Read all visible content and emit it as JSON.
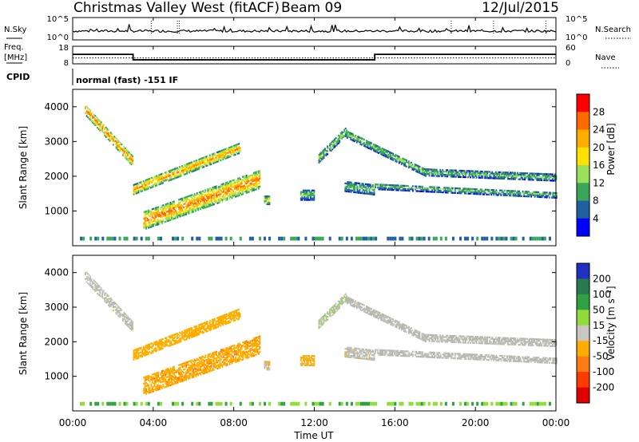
{
  "header": {
    "station": "Christmas Valley West (fitACF)",
    "beam": "Beam 09",
    "date": "12/Jul/2015"
  },
  "noise_panel": {
    "left_label": "N.Sky",
    "right_label": "N.Search",
    "left_ticks": [
      "10^5",
      "10^0"
    ],
    "right_ticks": [
      "10^5",
      "10^0"
    ]
  },
  "freq_panel": {
    "left_label_1": "Freq.",
    "left_label_2": "[MHz]",
    "right_label": "Nave",
    "left_ticks": [
      "18",
      "8"
    ],
    "right_ticks": [
      "60",
      "0"
    ]
  },
  "cpid": {
    "label": "CPID",
    "value": "normal (fast) -151 IF"
  },
  "power_panel": {
    "ylabel": "Slant Range [km]",
    "yticks": [
      "4000",
      "3000",
      "2000",
      "1000"
    ],
    "colorbar_label": "Power [dB]",
    "colorbar_ticks": [
      "28",
      "24",
      "20",
      "16",
      "12",
      "8",
      "4"
    ]
  },
  "velocity_panel": {
    "ylabel": "Slant Range [km]",
    "yticks": [
      "4000",
      "3000",
      "2000",
      "1000"
    ],
    "colorbar_label": "Velocity [m s⁻¹]",
    "colorbar_ticks": [
      "200",
      "100",
      "50",
      "15",
      "-15",
      "-50",
      "-100",
      "-200"
    ]
  },
  "xaxis": {
    "label": "Time UT",
    "ticks": [
      "00:00",
      "04:00",
      "08:00",
      "12:00",
      "16:00",
      "20:00",
      "00:00"
    ]
  },
  "colors": {
    "power_scale": [
      "#ff0000",
      "#ff6a00",
      "#ffae00",
      "#ffe000",
      "#9be05a",
      "#3aa65a",
      "#2060a0",
      "#0000ff"
    ],
    "velocity_scale": [
      "#2030c0",
      "#2a7a50",
      "#30a040",
      "#8fdc3a",
      "#c8c8c0",
      "#ffae00",
      "#ff7a10",
      "#ff3a00",
      "#e00000"
    ],
    "ground_scatter": "#b8b8b0"
  },
  "chart_data": {
    "type": "heatmap",
    "x_unit": "hours UT",
    "xlim": [
      0,
      24
    ],
    "ylim": [
      0,
      4500
    ],
    "y_unit": "km",
    "power_cbar_range": [
      0,
      32
    ],
    "velocity_cbar_range": [
      -250,
      250
    ],
    "frequency_mhz": [
      {
        "start": 0,
        "end": 3,
        "value": 13.4
      },
      {
        "start": 3,
        "end": 15,
        "value": 10.3
      },
      {
        "start": 15,
        "end": 24,
        "value": 13.4
      }
    ],
    "nave_level": 20,
    "noise_sky_level": 4,
    "echo_regions": [
      {
        "name": "early-F",
        "t0": 0.6,
        "t1": 3.0,
        "r0": 3900,
        "r1": 2400,
        "thick": 300,
        "power": 22,
        "velocity": 10
      },
      {
        "name": "upper-band",
        "t0": 3.0,
        "t1": 8.3,
        "r0": 1600,
        "r1": 2800,
        "thick": 280,
        "power": 20,
        "velocity": -60
      },
      {
        "name": "lower-band",
        "t0": 3.5,
        "t1": 9.3,
        "r0": 700,
        "r1": 1900,
        "thick": 500,
        "power": 22,
        "velocity": -70
      },
      {
        "name": "morning-arc",
        "t0": 12.2,
        "t1": 13.6,
        "r0": 2500,
        "r1": 3300,
        "thick": 250,
        "power": 12,
        "velocity": 15
      },
      {
        "name": "arc-descend",
        "t0": 13.6,
        "t1": 17.5,
        "r0": 3200,
        "r1": 2100,
        "thick": 220,
        "power": 11,
        "velocity": 5
      },
      {
        "name": "upper-streak",
        "t0": 17.5,
        "t1": 24.0,
        "r0": 2100,
        "r1": 1950,
        "thick": 200,
        "power": 10,
        "velocity": 0
      },
      {
        "name": "lower-streak",
        "t0": 15.0,
        "t1": 24.0,
        "r0": 1700,
        "r1": 1450,
        "thick": 180,
        "power": 10,
        "velocity": 0
      },
      {
        "name": "mid-blob",
        "t0": 13.5,
        "t1": 15.0,
        "r0": 1700,
        "r1": 1600,
        "thick": 300,
        "power": 10,
        "velocity": -10
      },
      {
        "name": "small-blob-1",
        "t0": 9.5,
        "t1": 9.8,
        "r0": 1300,
        "r1": 1300,
        "thick": 250,
        "power": 14,
        "velocity": -20
      },
      {
        "name": "small-blob-2",
        "t0": 11.3,
        "t1": 12.0,
        "r0": 1450,
        "r1": 1450,
        "thick": 300,
        "power": 10,
        "velocity": -40
      }
    ]
  }
}
